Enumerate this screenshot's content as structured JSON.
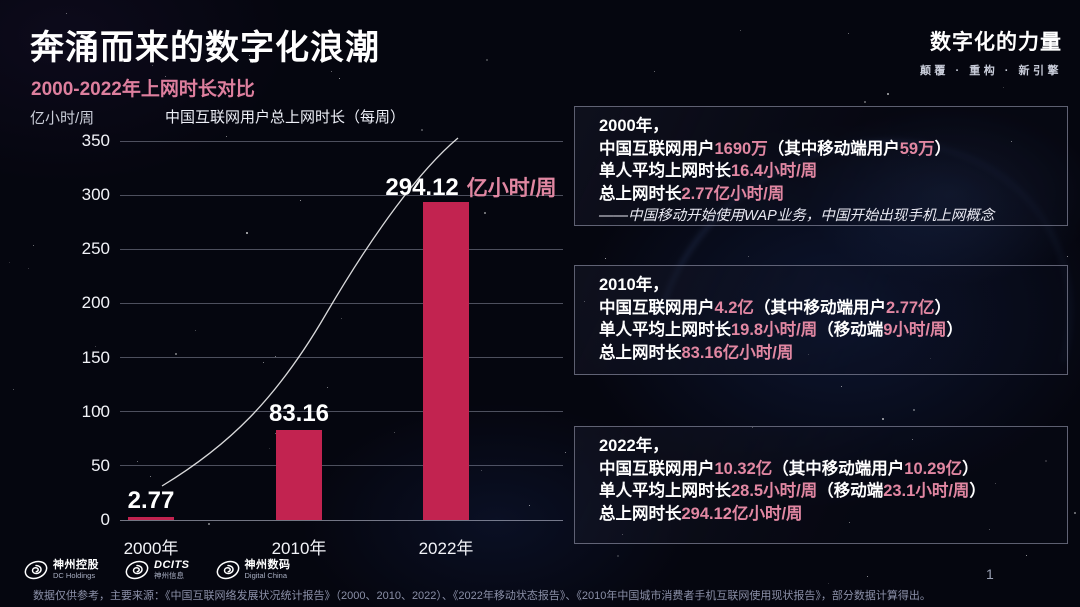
{
  "header": {
    "title": "奔涌而来的数字化浪潮",
    "subtitle": "2000-2022年上网时长对比",
    "brand_title": "数字化的力量",
    "brand_tagline": "颠覆 · 重构 · 新引擎"
  },
  "chart_data": {
    "type": "bar",
    "title": "中国互联网用户总上网时长（每周）",
    "ylabel": "亿小时/周",
    "xlabel": "",
    "categories": [
      "2000年",
      "2010年",
      "2022年"
    ],
    "values": [
      2.77,
      83.16,
      294.12
    ],
    "bar_labels": [
      "2.77",
      "83.16",
      "294.12"
    ],
    "bar_label_unit_for_last": "亿小时/周",
    "yticks": [
      0,
      50,
      100,
      150,
      200,
      250,
      300,
      350
    ],
    "ylim": [
      0,
      350
    ],
    "grid": true,
    "legend": "none",
    "bar_color": "#c22350",
    "highlight_color": "#e187a2",
    "trend_line": true
  },
  "boxes": [
    {
      "year": "2000年，",
      "lines": [
        [
          "中国互联网用户",
          "1690万",
          "（其中移动端用户",
          "59万",
          "）"
        ],
        [
          "单人平均上网时长",
          "16.4小时/周"
        ],
        [
          "总上网时长",
          "2.77亿小时/周"
        ]
      ],
      "note": "——中国移动开始使用WAP业务，中国开始出现手机上网概念"
    },
    {
      "year": "2010年，",
      "lines": [
        [
          "中国互联网用户",
          "4.2亿",
          "（其中移动端用户",
          "2.77亿",
          "）"
        ],
        [
          "单人平均上网时长",
          "19.8小时/周",
          "（移动端",
          "9小时/周",
          "）"
        ],
        [
          "总上网时长",
          "83.16亿小时/周"
        ]
      ]
    },
    {
      "year": "2022年，",
      "lines": [
        [
          "中国互联网用户",
          "10.32亿",
          "（其中移动端用户",
          "10.29亿",
          "）"
        ],
        [
          "单人平均上网时长",
          "28.5小时/周",
          "（移动端",
          "23.1小时/周",
          "）"
        ],
        [
          "总上网时长",
          "294.12亿小时/周"
        ]
      ]
    }
  ],
  "footer": {
    "logos": [
      {
        "name": "神州控股",
        "sub": "DC Holdings"
      },
      {
        "name": "DCITS",
        "sub": "神州信息"
      },
      {
        "name": "神州数码",
        "sub": "Digital China"
      }
    ],
    "footnote": "数据仅供参考，主要来源：《中国互联网络发展状况统计报告》（2000、2010、2022）、《2022年移动状态报告》、《2010年中国城市消费者手机互联网使用现状报告》，部分数据计算得出。",
    "page_number": "1"
  }
}
